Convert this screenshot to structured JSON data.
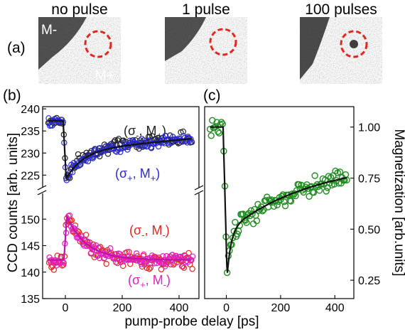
{
  "panel_labels": {
    "a": "(a)",
    "b": "(b)",
    "c": "(c)"
  },
  "images": [
    {
      "label": "no pulse",
      "domain_label_left": "M-",
      "domain_label_right": "M+"
    },
    {
      "label": "1 pulse"
    },
    {
      "label": "100 pulses"
    }
  ],
  "colors": {
    "black": "#222222",
    "blue": "#2a2ad0",
    "red": "#e0281e",
    "magenta": "#e020c0",
    "green": "#1e8c1e",
    "circle": "#e0281e"
  },
  "chart_data": [
    {
      "type": "scatter",
      "panel": "(b)",
      "xlabel": "pump-probe delay [ps]",
      "ylabel": "CCD counts [arb. units]",
      "xlim": [
        -80,
        470
      ],
      "x_ticks": [
        0,
        200,
        400
      ],
      "y_axis_break": true,
      "upper": {
        "ylim": [
          222,
          240.5
        ],
        "y_ticks": [
          225,
          230,
          235,
          240
        ]
      },
      "lower": {
        "ylim": [
          135,
          155
        ],
        "y_ticks": [
          135,
          140,
          145,
          150
        ]
      },
      "series": [
        {
          "name": "(σ-, M+)",
          "name_main": "(σ",
          "name_sub": "-",
          "name_rest": ", M",
          "name_sub2": "+",
          "name_end": ")",
          "color": "#222222",
          "panel_part": "upper",
          "baseline": 237.3,
          "dip": 224.2,
          "recovered": 231.3,
          "tau": 60,
          "slope": 0.005,
          "noise": 1.2
        },
        {
          "name": "(σ+, M+)",
          "name_main": "(σ",
          "name_sub": "+",
          "name_rest": ", M",
          "name_sub2": "+",
          "name_end": ")",
          "color": "#2a2ad0",
          "panel_part": "upper",
          "baseline": 237.3,
          "dip": 224.2,
          "recovered": 230.6,
          "tau": 60,
          "slope": 0.006,
          "noise": 1.0
        },
        {
          "name": "(σ-, M-)",
          "name_main": "(σ",
          "name_sub": "-",
          "name_rest": ", M",
          "name_sub2": "-",
          "name_end": ")",
          "color": "#e0281e",
          "panel_part": "lower",
          "baseline": 141.8,
          "peak": 151.0,
          "final": 142.0,
          "tau": 70,
          "noise": 1.2
        },
        {
          "name": "(σ+, M-)",
          "name_main": "(σ",
          "name_sub": "+",
          "name_rest": ", M",
          "name_sub2": "-",
          "name_end": ")",
          "color": "#e020c0",
          "panel_part": "lower",
          "baseline": 142.3,
          "peak": 150.5,
          "final": 142.3,
          "tau": 70,
          "noise": 1.0
        }
      ]
    },
    {
      "type": "scatter",
      "panel": "(c)",
      "xlabel": "pump-probe delay [ps]",
      "ylabel": "Magnetization [arb.units]",
      "xlim": [
        -80,
        470
      ],
      "x_ticks": [
        0,
        200,
        400
      ],
      "ylim": [
        0.16,
        1.1
      ],
      "y_ticks": [
        0.25,
        0.5,
        0.75,
        1.0
      ],
      "y_tick_labels": [
        "0.25",
        "0.50",
        "0.75",
        "1.00"
      ],
      "series": [
        {
          "name": "",
          "color": "#1e8c1e",
          "baseline": 1.0,
          "min": 0.27,
          "recover": 0.77,
          "tau": 320,
          "noise": 0.04
        }
      ]
    }
  ]
}
